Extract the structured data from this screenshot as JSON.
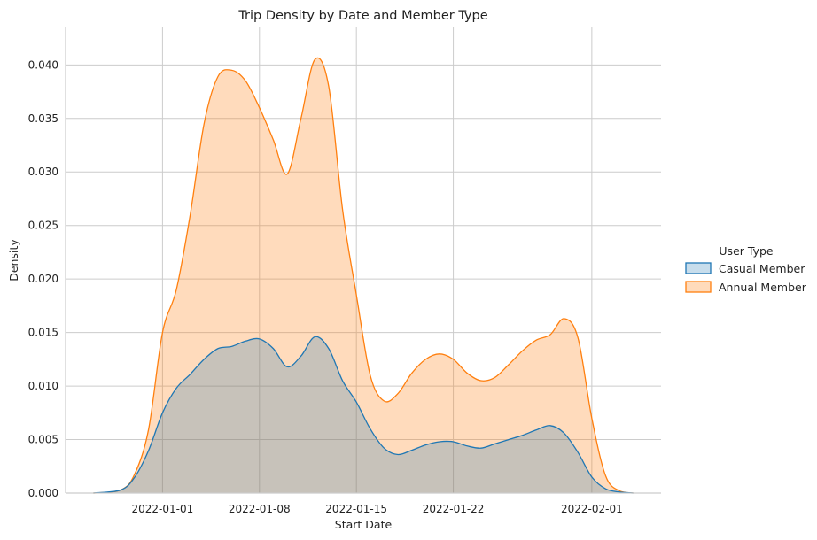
{
  "chart_data": {
    "type": "area",
    "title": "Trip Density by Date and Member Type",
    "xlabel": "Start Date",
    "ylabel": "Density",
    "x_ticks": [
      "2022-01-01",
      "2022-01-08",
      "2022-01-15",
      "2022-01-22",
      "2022-02-01"
    ],
    "xlim": [
      "2021-12-25",
      "2022-02-06"
    ],
    "ylim": [
      0,
      0.0435
    ],
    "y_ticks": [
      0.0,
      0.005,
      0.01,
      0.015,
      0.02,
      0.025,
      0.03,
      0.035,
      0.04
    ],
    "y_tick_labels": [
      "0.000",
      "0.005",
      "0.010",
      "0.015",
      "0.020",
      "0.025",
      "0.030",
      "0.035",
      "0.040"
    ],
    "grid": true,
    "legend": {
      "title": "User Type",
      "placement": "right, outside plot"
    },
    "series": [
      {
        "name": "Casual Member",
        "color": "#1f77b4",
        "fill": "rgba(31,119,180,0.25)",
        "x": [
          "2021-12-27",
          "2021-12-29",
          "2021-12-30",
          "2021-12-31",
          "2022-01-01",
          "2022-01-02",
          "2022-01-03",
          "2022-01-04",
          "2022-01-05",
          "2022-01-06",
          "2022-01-07",
          "2022-01-08",
          "2022-01-09",
          "2022-01-10",
          "2022-01-11",
          "2022-01-12",
          "2022-01-13",
          "2022-01-14",
          "2022-01-15",
          "2022-01-16",
          "2022-01-17",
          "2022-01-18",
          "2022-01-19",
          "2022-01-20",
          "2022-01-21",
          "2022-01-22",
          "2022-01-23",
          "2022-01-24",
          "2022-01-25",
          "2022-01-26",
          "2022-01-27",
          "2022-01-28",
          "2022-01-29",
          "2022-01-30",
          "2022-01-31",
          "2022-02-01",
          "2022-02-02",
          "2022-02-03",
          "2022-02-04"
        ],
        "y": [
          0.0,
          0.0003,
          0.0015,
          0.004,
          0.0075,
          0.0098,
          0.0111,
          0.0125,
          0.0135,
          0.0137,
          0.0142,
          0.0144,
          0.0135,
          0.0118,
          0.0128,
          0.0146,
          0.0135,
          0.0105,
          0.0085,
          0.006,
          0.0042,
          0.0036,
          0.004,
          0.0045,
          0.0048,
          0.0048,
          0.0044,
          0.0042,
          0.0046,
          0.005,
          0.0054,
          0.0059,
          0.0063,
          0.0056,
          0.0038,
          0.0015,
          0.0004,
          0.0001,
          0.0
        ]
      },
      {
        "name": "Annual Member",
        "color": "#ff7f0e",
        "fill": "rgba(255,127,14,0.28)",
        "x": [
          "2021-12-27",
          "2021-12-29",
          "2021-12-30",
          "2021-12-31",
          "2022-01-01",
          "2022-01-02",
          "2022-01-03",
          "2022-01-04",
          "2022-01-05",
          "2022-01-06",
          "2022-01-07",
          "2022-01-08",
          "2022-01-09",
          "2022-01-10",
          "2022-01-11",
          "2022-01-12",
          "2022-01-13",
          "2022-01-14",
          "2022-01-15",
          "2022-01-16",
          "2022-01-17",
          "2022-01-18",
          "2022-01-19",
          "2022-01-20",
          "2022-01-21",
          "2022-01-22",
          "2022-01-23",
          "2022-01-24",
          "2022-01-25",
          "2022-01-26",
          "2022-01-27",
          "2022-01-28",
          "2022-01-29",
          "2022-01-30",
          "2022-01-31",
          "2022-02-01",
          "2022-02-02",
          "2022-02-03",
          "2022-02-04"
        ],
        "y": [
          0.0,
          0.0003,
          0.0018,
          0.006,
          0.015,
          0.019,
          0.026,
          0.0345,
          0.0389,
          0.0395,
          0.0385,
          0.036,
          0.033,
          0.0298,
          0.035,
          0.0405,
          0.038,
          0.0265,
          0.0185,
          0.011,
          0.0086,
          0.0093,
          0.0112,
          0.0125,
          0.013,
          0.0125,
          0.0112,
          0.0105,
          0.0108,
          0.012,
          0.0133,
          0.0143,
          0.0148,
          0.0163,
          0.0145,
          0.007,
          0.0016,
          0.0002,
          0.0
        ]
      }
    ]
  }
}
